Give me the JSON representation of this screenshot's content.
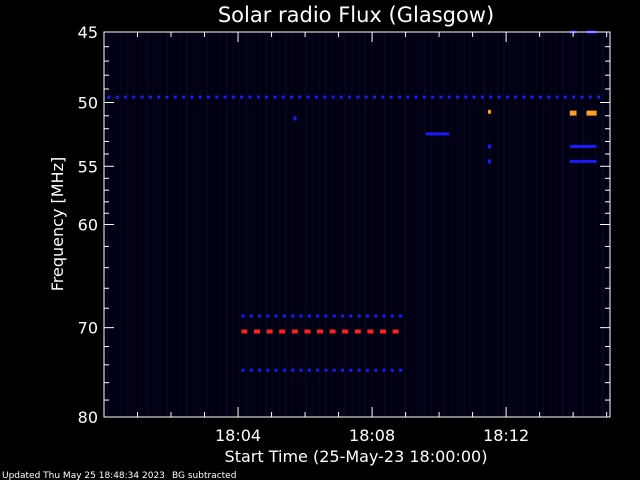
{
  "chart_data": {
    "type": "heatmap",
    "title": "Solar radio Flux (Glasgow)",
    "xlabel": "Start Time (25-May-23 18:00:00)",
    "ylabel": "Frequency [MHz]",
    "x_unit": "minutes after 18:00:00",
    "xlim": [
      0,
      15.1
    ],
    "ylim": [
      45,
      80
    ],
    "y_scale": "log",
    "x_ticks": [
      {
        "value": 4,
        "label": "18:04"
      },
      {
        "value": 8,
        "label": "18:08"
      },
      {
        "value": 12,
        "label": "18:12"
      }
    ],
    "y_ticks": [
      45,
      50,
      55,
      60,
      70,
      80
    ],
    "y_tick_labels": [
      "45",
      "50",
      "55",
      "60",
      "70",
      "80"
    ],
    "background_color": "#000012",
    "colors": {
      "background": "#000000",
      "plot_bg": "#000012",
      "axis": "#ffffff",
      "blue": "#1a1aff",
      "red": "#ff2020",
      "orange": "#ffa020"
    },
    "features": [
      {
        "kind": "dashed-band",
        "color": "blue",
        "freq": 49.6,
        "t_start": 0.1,
        "t_end": 15.0
      },
      {
        "kind": "dashed-band",
        "color": "blue",
        "freq": 68.8,
        "t_start": 4.1,
        "t_end": 9.0
      },
      {
        "kind": "dashed-band",
        "color": "red",
        "freq": 70.4,
        "t_start": 4.1,
        "t_end": 9.0
      },
      {
        "kind": "dashed-band",
        "color": "blue",
        "freq": 74.6,
        "t_start": 4.1,
        "t_end": 9.0
      },
      {
        "kind": "segment",
        "color": "blue",
        "freq": 52.4,
        "t_start": 9.6,
        "t_end": 10.3
      },
      {
        "kind": "dot",
        "color": "blue",
        "freq": 51.2,
        "t": 5.7
      },
      {
        "kind": "dot",
        "color": "orange",
        "freq": 50.7,
        "t": 11.5
      },
      {
        "kind": "dot",
        "color": "blue",
        "freq": 53.4,
        "t": 11.5
      },
      {
        "kind": "dot",
        "color": "blue",
        "freq": 54.6,
        "t": 11.5
      },
      {
        "kind": "segment",
        "color": "orange",
        "freq": 50.8,
        "t_start": 13.9,
        "t_end": 14.1
      },
      {
        "kind": "segment",
        "color": "orange",
        "freq": 50.8,
        "t_start": 14.4,
        "t_end": 14.7
      },
      {
        "kind": "segment",
        "color": "blue",
        "freq": 53.4,
        "t_start": 13.9,
        "t_end": 14.7
      },
      {
        "kind": "segment",
        "color": "blue",
        "freq": 54.6,
        "t_start": 13.9,
        "t_end": 14.7
      },
      {
        "kind": "segment",
        "color": "blue",
        "freq": 45.0,
        "t_start": 13.9,
        "t_end": 14.1
      },
      {
        "kind": "segment",
        "color": "blue",
        "freq": 45.0,
        "t_start": 14.4,
        "t_end": 14.7
      }
    ]
  },
  "footer": {
    "updated": "Updated Thu May 25 18:48:34 2023",
    "note": "BG subtracted"
  }
}
